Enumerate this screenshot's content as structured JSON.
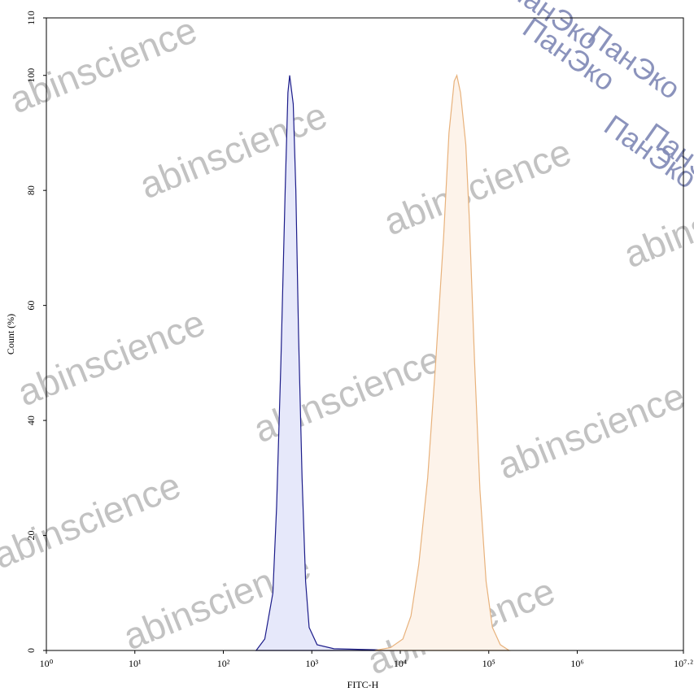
{
  "chart_data": {
    "type": "area",
    "xlabel": "FITC-H",
    "ylabel": "Count (%)",
    "watermark": "abinscience",
    "watermark2": "ПанЭко",
    "log_x": true,
    "xlim": [
      1,
      15848931.9
    ],
    "xticks": [
      {
        "value": 1,
        "label": "10⁰"
      },
      {
        "value": 10,
        "label": "10¹"
      },
      {
        "value": 100,
        "label": "10²"
      },
      {
        "value": 1000,
        "label": "10³"
      },
      {
        "value": 10000,
        "label": "10⁴"
      },
      {
        "value": 100000,
        "label": "10⁵"
      },
      {
        "value": 1000000,
        "label": "10⁶"
      },
      {
        "value": 15848931.9,
        "label": "10⁷·²"
      }
    ],
    "ylim": [
      0,
      110
    ],
    "yticks": [
      0,
      20,
      40,
      60,
      80,
      100,
      110
    ],
    "series": [
      {
        "color": "#1c1c8a",
        "fill": "#e6e8fa",
        "x": [
          235,
          294,
          363,
          400,
          447,
          500,
          537,
          562,
          617,
          660,
          708,
          776,
          851,
          933,
          1148,
          1778,
          3311,
          6310,
          10000
        ],
        "values": [
          0,
          2,
          10,
          25,
          50,
          80,
          97,
          100,
          95,
          80,
          55,
          30,
          12,
          4,
          1,
          0.3,
          0.2,
          0.1,
          0
        ]
      },
      {
        "color": "#e8b27c",
        "fill": "#fdf3ea",
        "x": [
          5130,
          7760,
          10700,
          13200,
          16200,
          20400,
          25100,
          30900,
          35500,
          40700,
          43600,
          47900,
          55000,
          60300,
          69200,
          79400,
          93300,
          110000,
          135000,
          170000
        ],
        "values": [
          0,
          0.5,
          2,
          6,
          15,
          30,
          50,
          72,
          90,
          99,
          100,
          97,
          88,
          75,
          50,
          28,
          12,
          4,
          1,
          0
        ]
      }
    ]
  }
}
